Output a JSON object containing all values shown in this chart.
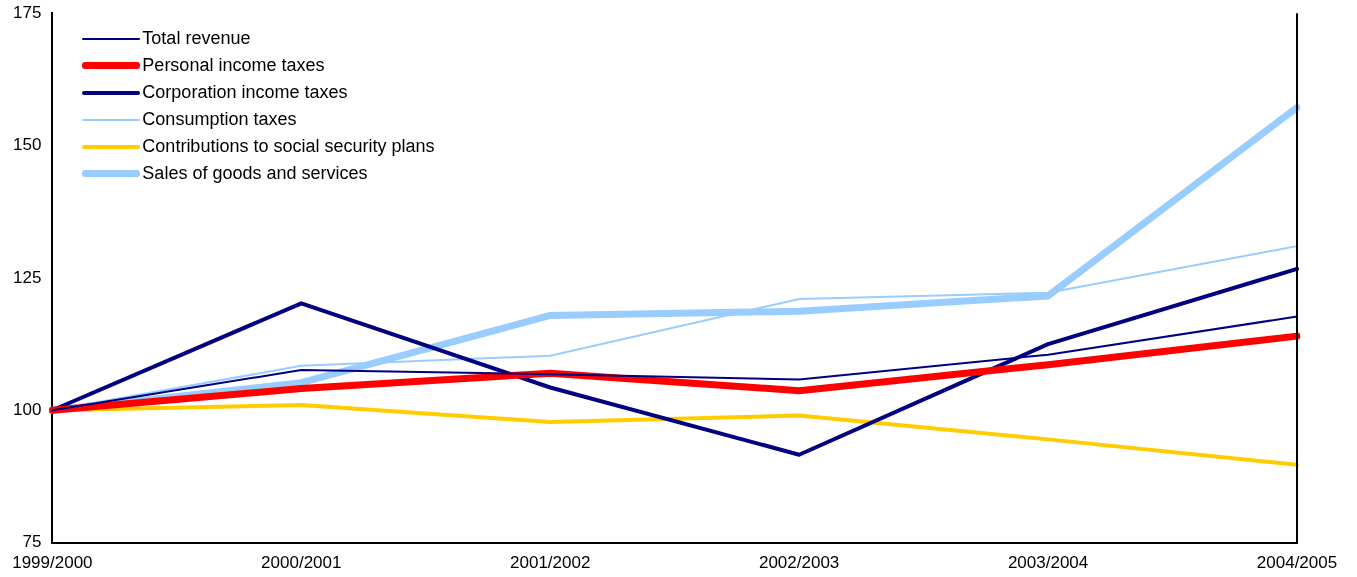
{
  "chart_data": {
    "type": "line",
    "categories": [
      "1999/2000",
      "2000/2001",
      "2001/2002",
      "2002/2003",
      "2003/2004",
      "2004/2005"
    ],
    "ylim": [
      75,
      175
    ],
    "yticks": [
      75,
      100,
      125,
      150,
      175
    ],
    "grid": false,
    "legend": "top left",
    "marker": "none",
    "line_style": "solid",
    "series": [
      {
        "name": "Total revenue",
        "color": "#000080",
        "values": [
          100,
          107.6,
          106.8,
          105.8,
          110.5,
          117.7
        ]
      },
      {
        "name": "Personal income taxes",
        "color": "#ff0000",
        "values": [
          100,
          104.1,
          107,
          103.7,
          108.6,
          114
        ]
      },
      {
        "name": "Corporation income taxes",
        "color": "#000080",
        "values": [
          100,
          120.2,
          104.3,
          91.6,
          112.5,
          126.7
        ]
      },
      {
        "name": "Consumption taxes",
        "color": "#99ccff",
        "values": [
          100,
          108.4,
          110.3,
          121,
          122.2,
          131
        ]
      },
      {
        "name": "Contributions to social security plans",
        "color": "#ffcc00",
        "values": [
          100,
          101,
          97.8,
          99,
          94.5,
          89.7
        ]
      },
      {
        "name": "Sales of goods and services",
        "color": "#99ccff",
        "values": [
          100,
          105.2,
          117.9,
          118.7,
          121.6,
          157.2
        ]
      }
    ]
  }
}
